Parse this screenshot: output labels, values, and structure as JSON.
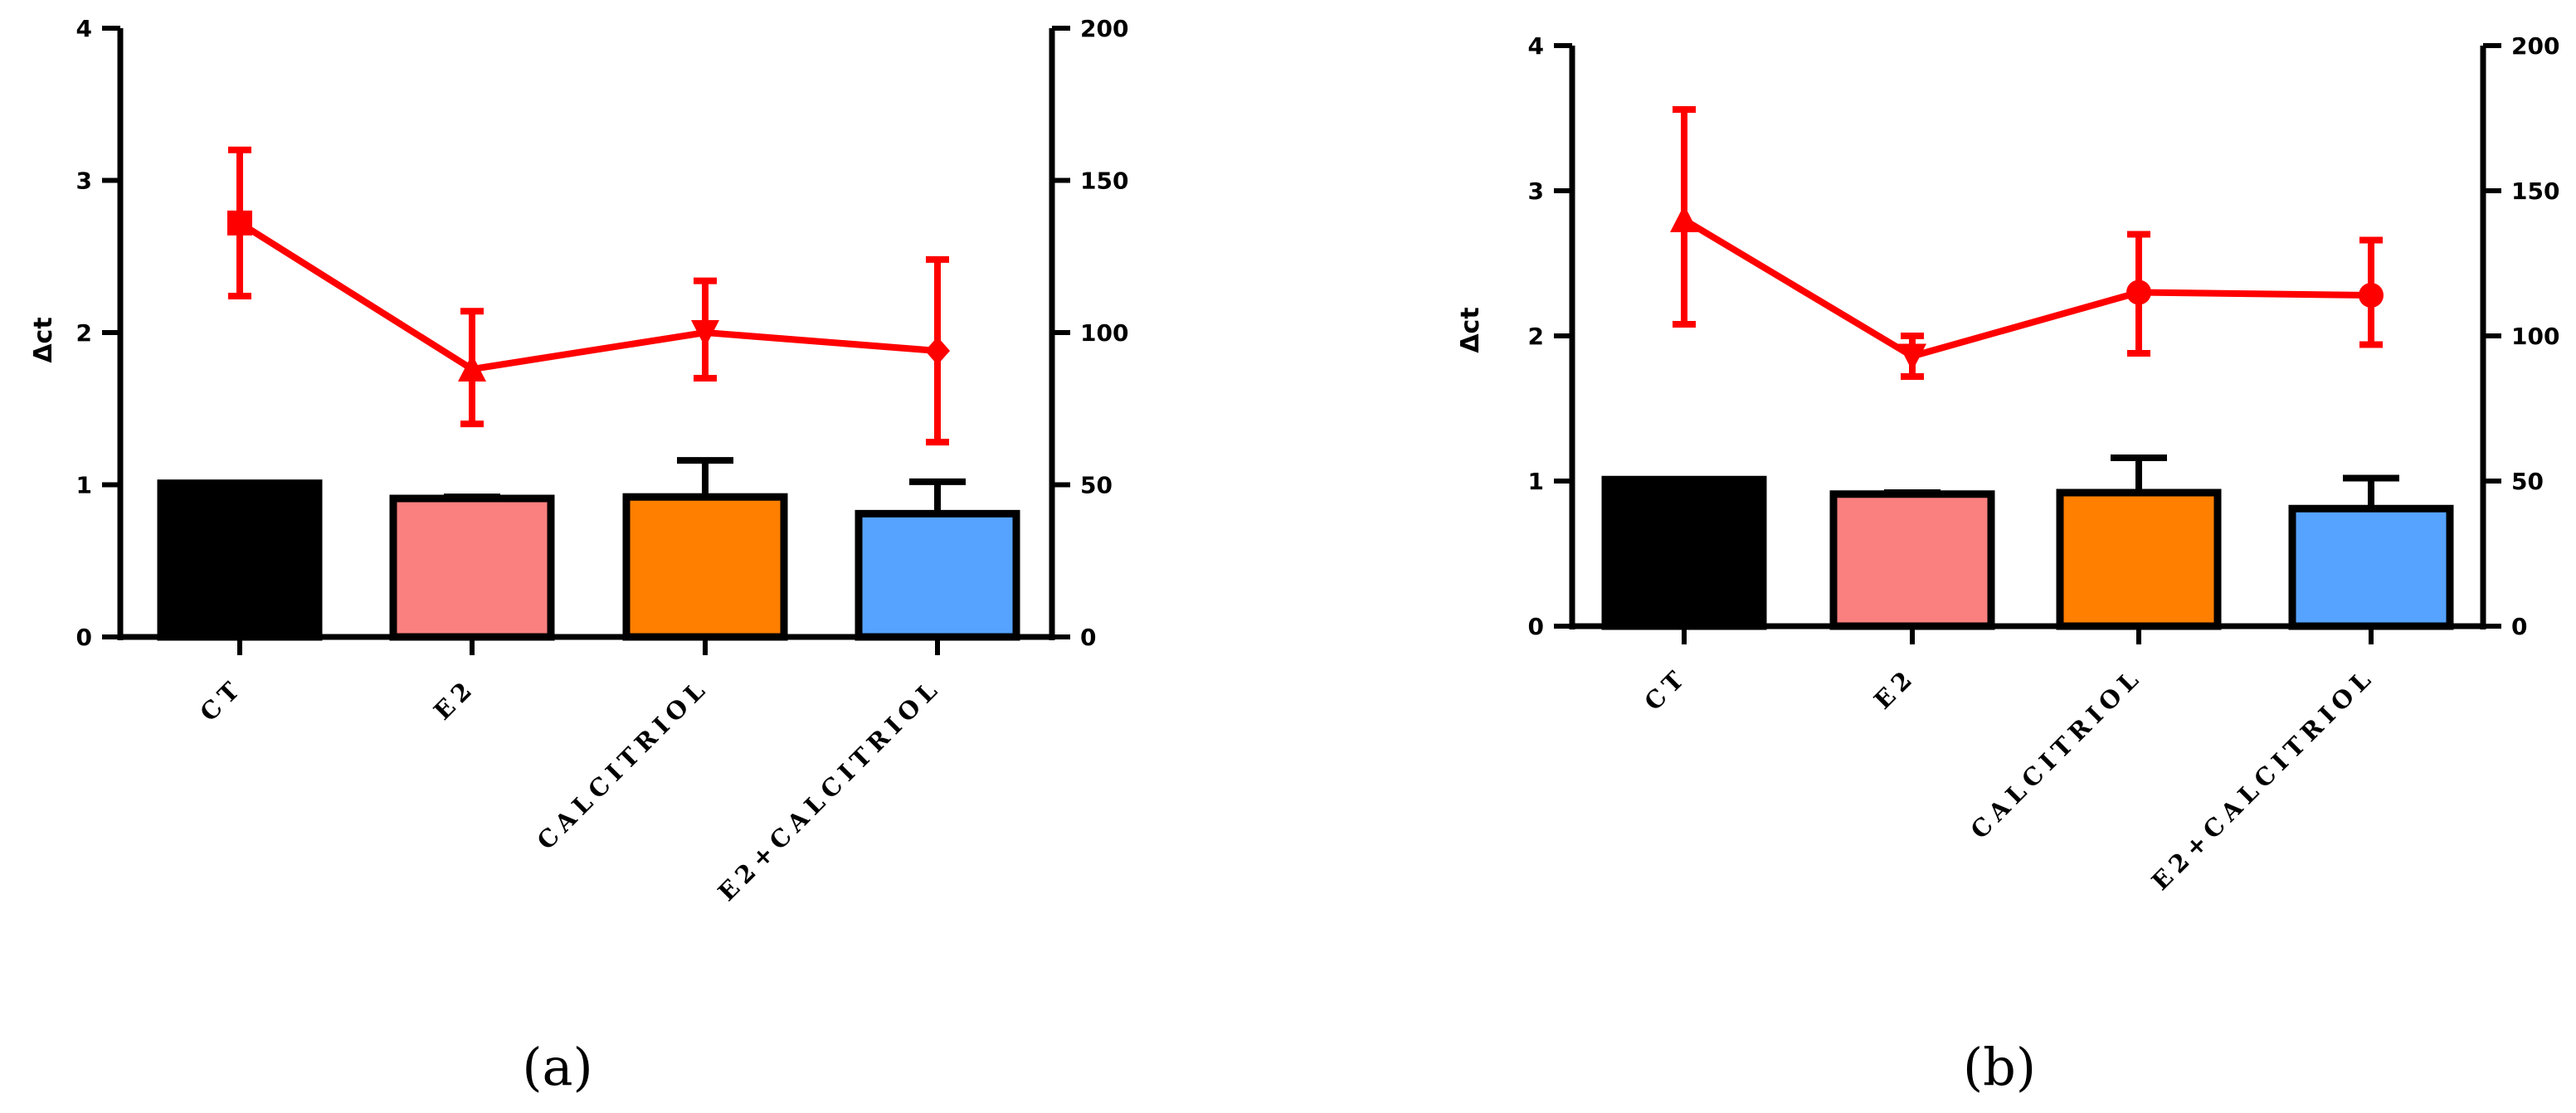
{
  "chart_data": [
    {
      "panel_label": "(a)",
      "type": "bar+line",
      "categories": [
        "CT",
        "E2",
        "CALCITRIOL",
        "E2+CALCITRIOL"
      ],
      "ylabel_left": "Δct",
      "left_axis": {
        "min": 0,
        "max": 4,
        "ticks": [
          "0",
          "1",
          "2",
          "3",
          "4"
        ]
      },
      "right_axis": {
        "min": 0,
        "max": 200,
        "ticks": [
          "0",
          "50",
          "100",
          "150",
          "200"
        ]
      },
      "bars": {
        "axis": "left",
        "values": [
          1.01,
          0.91,
          0.92,
          0.81
        ],
        "errors": [
          0,
          0.01,
          0.24,
          0.21
        ],
        "colors": [
          "#000000",
          "#fa8080",
          "#ff7f00",
          "#55a3ff"
        ]
      },
      "line": {
        "axis": "right",
        "color": "#ff0000",
        "markers": [
          "square",
          "triangle-up",
          "triangle-down",
          "diamond"
        ],
        "values": [
          136,
          88,
          100,
          94
        ],
        "err_upper": [
          24,
          19,
          17,
          30
        ],
        "err_lower": [
          24,
          18,
          15,
          30
        ]
      }
    },
    {
      "panel_label": "(b)",
      "type": "bar+line",
      "categories": [
        "CT",
        "E2",
        "CALCITRIOL",
        "E2+CALCITRIOL"
      ],
      "ylabel_left": "Δct",
      "left_axis": {
        "min": 0,
        "max": 4,
        "ticks": [
          "0",
          "1",
          "2",
          "3",
          "4"
        ]
      },
      "right_axis": {
        "min": 0,
        "max": 200,
        "ticks": [
          "0",
          "50",
          "100",
          "150",
          "200"
        ]
      },
      "bars": {
        "axis": "left",
        "values": [
          1.01,
          0.91,
          0.92,
          0.81
        ],
        "errors": [
          0,
          0.01,
          0.24,
          0.21
        ],
        "colors": [
          "#000000",
          "#fa8080",
          "#ff7f00",
          "#55a3ff"
        ]
      },
      "line": {
        "axis": "right",
        "color": "#ff0000",
        "markers": [
          "triangle-up",
          "triangle-down",
          "circle",
          "circle"
        ],
        "values": [
          140,
          93,
          115,
          114
        ],
        "err_upper": [
          38,
          7,
          20,
          19
        ],
        "err_lower": [
          36,
          7,
          21,
          17
        ]
      }
    }
  ]
}
